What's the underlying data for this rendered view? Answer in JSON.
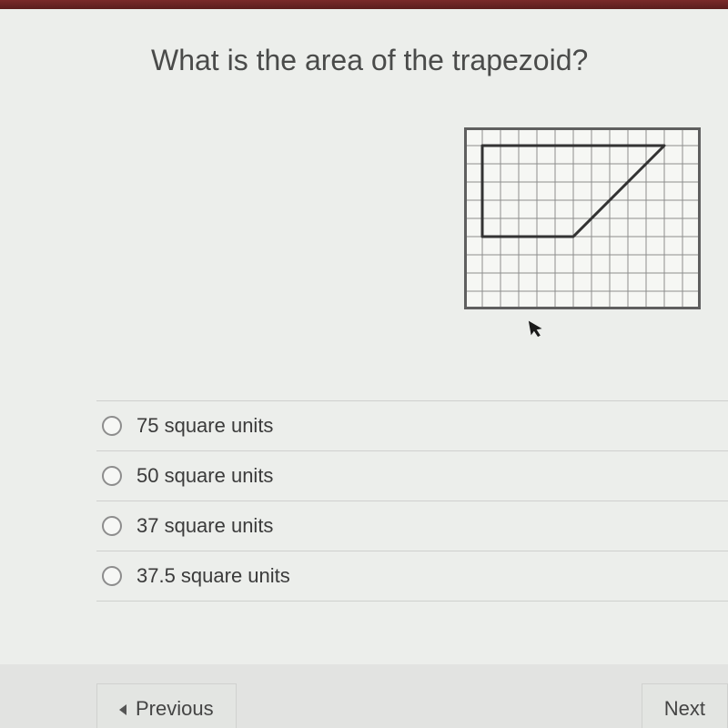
{
  "question": {
    "title": "What is the area of the trapezoid?"
  },
  "grid": {
    "cols": 13,
    "rows": 10,
    "cell": 20,
    "border_color": "#5f5f5f",
    "grid_color": "#8d8d8d",
    "grid_stroke": 1,
    "bg_color": "#f6f7f4",
    "outer_stroke": 3,
    "trapezoid": {
      "points": [
        [
          1,
          1
        ],
        [
          11,
          1
        ],
        [
          6,
          6
        ],
        [
          1,
          6
        ]
      ],
      "stroke_color": "#333333",
      "stroke_width": 3,
      "fill": "none"
    }
  },
  "options": [
    {
      "label": "75 square units"
    },
    {
      "label": "50 square units"
    },
    {
      "label": "37 square units"
    },
    {
      "label": "37.5 square units"
    }
  ],
  "nav": {
    "prev_label": "Previous",
    "next_label": "Next"
  },
  "colors": {
    "page_bg": "#eceeeb",
    "row_border": "#cfd0ce",
    "text": "#3b3b3b",
    "topbar": "#6a2323"
  }
}
